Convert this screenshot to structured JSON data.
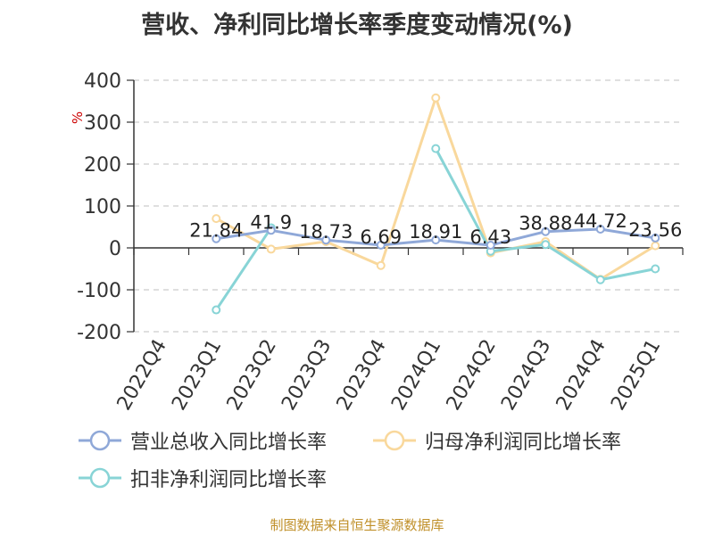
{
  "chart_data": {
    "type": "line",
    "title": "营收、净利同比增长率季度变动情况(%)",
    "ylabel": "%",
    "xlabel": "",
    "ylim": [
      -200,
      400
    ],
    "yticks": [
      -200,
      -100,
      0,
      100,
      200,
      300,
      400
    ],
    "grid": true,
    "legend_position": "bottom",
    "categories": [
      "2022Q4",
      "2023Q1",
      "2023Q2",
      "2023Q3",
      "2023Q4",
      "2024Q1",
      "2024Q2",
      "2024Q3",
      "2024Q4",
      "2025Q1"
    ],
    "series": [
      {
        "name": "营业总收入同比增长率",
        "color": "#8fa8d8",
        "values": [
          null,
          21.84,
          41.9,
          18.73,
          6.69,
          18.91,
          6.43,
          38.88,
          44.72,
          23.56
        ],
        "labels": [
          "",
          "21.84",
          "41.9",
          "18.73",
          "6.69",
          "18.91",
          "6.43",
          "38.88",
          "44.72",
          "23.56"
        ]
      },
      {
        "name": "归母净利润同比增长率",
        "color": "#f9d89c",
        "values": [
          null,
          70,
          -3,
          15,
          -42,
          358,
          -12,
          15,
          -75,
          5
        ]
      },
      {
        "name": "扣非净利润同比增长率",
        "color": "#88d4d6",
        "values": [
          null,
          -148,
          48,
          null,
          null,
          237,
          -8,
          8,
          -76,
          -50
        ]
      }
    ]
  },
  "source_note": "制图数据来自恒生聚源数据库"
}
